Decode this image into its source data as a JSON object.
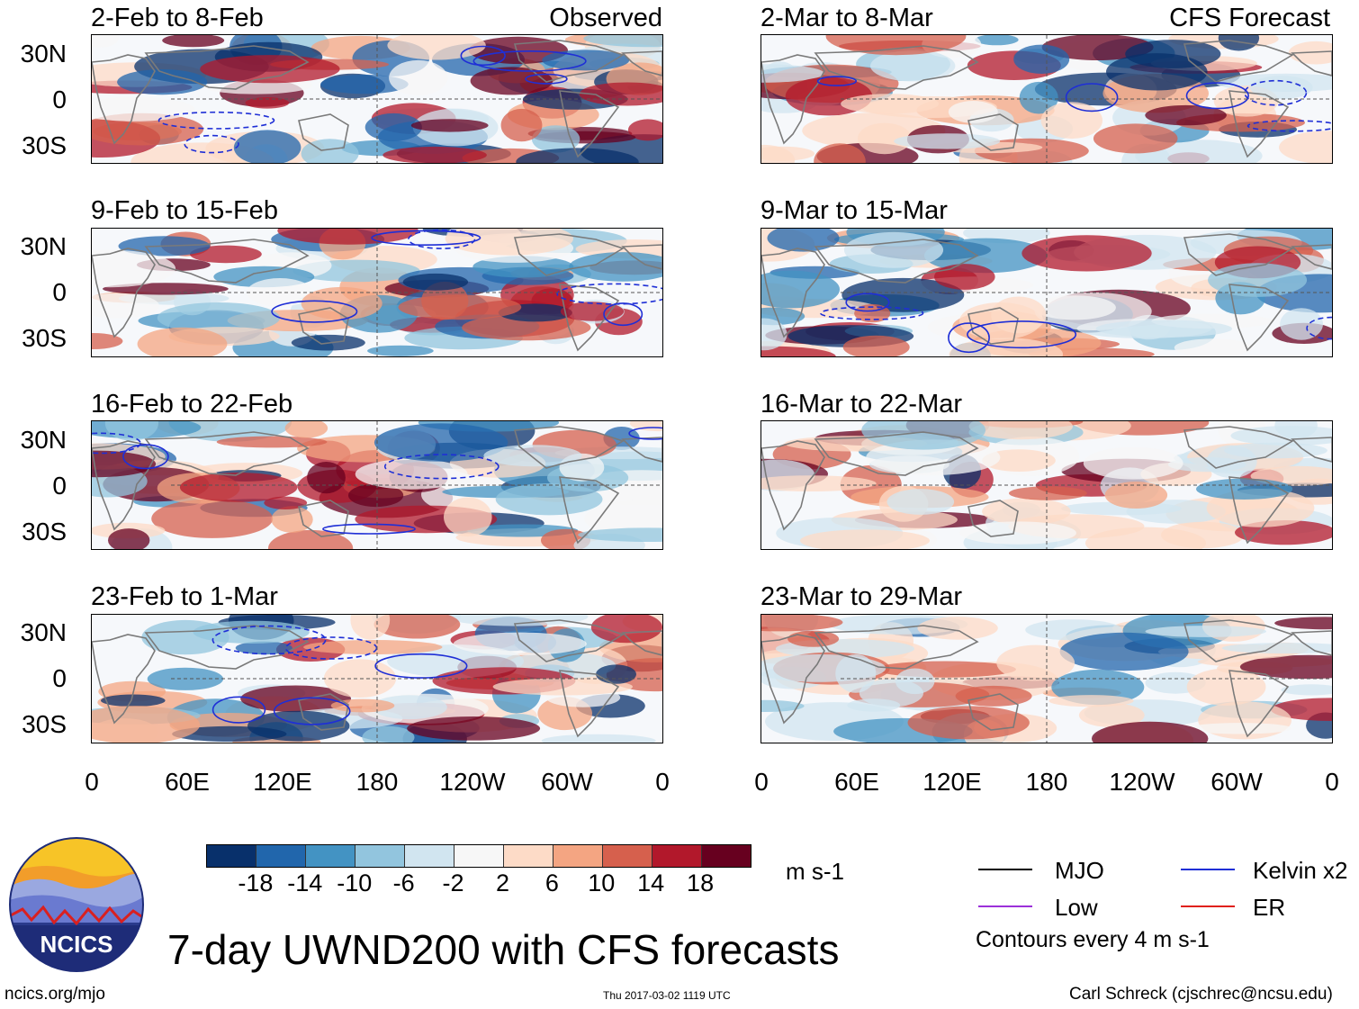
{
  "colors": {
    "scale": [
      "#08306b",
      "#2166ac",
      "#4393c3",
      "#92c5de",
      "#d1e5f0",
      "#f7f7f7",
      "#fddbc7",
      "#f4a582",
      "#d6604d",
      "#b2182b",
      "#67001f"
    ],
    "land": "#7a7a7a",
    "contour": "#1f2fd6",
    "equator": "#555555"
  },
  "column_labels": {
    "left": "Observed",
    "right": "CFS Forecast"
  },
  "panels_left": [
    {
      "title": "2-Feb to 8-Feb"
    },
    {
      "title": "9-Feb to 15-Feb"
    },
    {
      "title": "16-Feb to 22-Feb"
    },
    {
      "title": "23-Feb to 1-Mar"
    }
  ],
  "panels_right": [
    {
      "title": "2-Mar to 8-Mar"
    },
    {
      "title": "9-Mar to 15-Mar"
    },
    {
      "title": "16-Mar to 22-Mar"
    },
    {
      "title": "23-Mar to 29-Mar"
    }
  ],
  "lat_labels": [
    "30N",
    "0",
    "30S"
  ],
  "lon_labels": [
    "0",
    "60E",
    "120E",
    "180",
    "120W",
    "60W",
    "0"
  ],
  "colorbar": {
    "labels": [
      "-18",
      "-14",
      "-10",
      "-6",
      "-2",
      "2",
      "6",
      "10",
      "14",
      "18"
    ],
    "units": "m s-1"
  },
  "legend": {
    "items": [
      {
        "label": "MJO",
        "color": "#000000"
      },
      {
        "label": "Kelvin x2",
        "color": "#1f2fd6"
      },
      {
        "label": "Low",
        "color": "#9b30d9"
      },
      {
        "label": "ER",
        "color": "#e0201b"
      }
    ],
    "note": "Contours every 4 m s-1"
  },
  "logo_text": "NCICS",
  "main_title": "7-day UWND200 with CFS forecasts",
  "footer": {
    "url": "ncics.org/mjo",
    "timestamp": "Thu 2017-03-02 1119 UTC",
    "author": "Carl Schreck (cjschrec@ncsu.edu)"
  }
}
